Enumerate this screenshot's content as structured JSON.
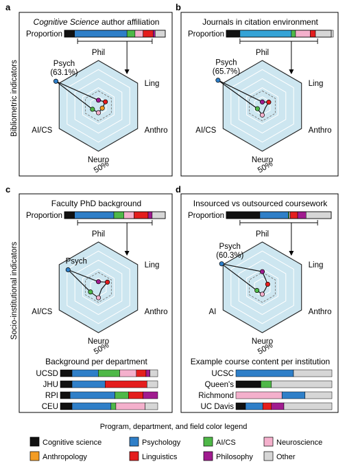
{
  "colors": {
    "Cognitive science": "#111111",
    "Psychology": "#2f7fc8",
    "Psychology_b": "#35a3d6",
    "AI/CS": "#4fb848",
    "Neuroscience": "#f4b0cc",
    "Anthropology": "#f39c24",
    "Linguistics": "#e41d1d",
    "Philosophy": "#a01b8f",
    "Other": "#d6d6d6",
    "radar_fill": "#cde6f0",
    "radar_edge": "#222222"
  },
  "side_labels": {
    "top": "Bibliometric indicators",
    "bottom": "Socio-institutional indicators"
  },
  "axis_pct_label": "50%",
  "proportion_label": "Proportion",
  "legend": {
    "title": "Program, department, and field color legend",
    "items": [
      {
        "label": "Cognitive science",
        "color": "#111111"
      },
      {
        "label": "Psychology",
        "color": "#2f7fc8"
      },
      {
        "label": "AI/CS",
        "color": "#4fb848"
      },
      {
        "label": "Neuroscience",
        "color": "#f4b0cc"
      },
      {
        "label": "Anthropology",
        "color": "#f39c24"
      },
      {
        "label": "Linguistics",
        "color": "#e41d1d"
      },
      {
        "label": "Philosophy",
        "color": "#a01b8f"
      },
      {
        "label": "Other",
        "color": "#d6d6d6"
      }
    ]
  },
  "chart_data": [
    {
      "id": "a",
      "panel_letter": "a",
      "type": "radar",
      "title_italic": "Cognitive Science",
      "title_rest": " author affiliation",
      "axes": [
        "Phil",
        "Ling",
        "Anthro",
        "Neuro",
        "AI/CS",
        "Psych"
      ],
      "values": [
        0.05,
        0.09,
        0.03,
        0.07,
        0.07,
        0.631
      ],
      "annotation": "Psych",
      "annotation_value": "(63.1%)",
      "proportion": [
        [
          "Cognitive science",
          0.1
        ],
        [
          "Psychology",
          0.52
        ],
        [
          "AI/CS",
          0.08
        ],
        [
          "Neuroscience",
          0.08
        ],
        [
          "Linguistics",
          0.1
        ],
        [
          "Philosophy",
          0.02
        ],
        [
          "Other",
          0.1
        ]
      ]
    },
    {
      "id": "b",
      "panel_letter": "b",
      "type": "radar",
      "title": "Journals in citation environment",
      "axes": [
        "Phil",
        "Ling",
        "Anthro",
        "Neuro",
        "AI/CS",
        "Psych"
      ],
      "values": [
        0.02,
        0.08,
        0.01,
        0.11,
        0.05,
        0.657
      ],
      "annotation": "Psych",
      "annotation_value": "(65.7%)",
      "proportion": [
        [
          "Cognitive science",
          0.13
        ],
        [
          "Psychology_b",
          0.49
        ],
        [
          "AI/CS",
          0.04
        ],
        [
          "Neuroscience",
          0.14
        ],
        [
          "Linguistics",
          0.05
        ],
        [
          "Other",
          0.17
        ]
      ]
    },
    {
      "id": "c",
      "panel_letter": "c",
      "type": "radar",
      "title": "Faculty PhD background",
      "axes": [
        "Phil",
        "Ling",
        "Anthro",
        "Neuro",
        "AI/CS",
        "Psych"
      ],
      "values": [
        0.05,
        0.13,
        0.01,
        0.13,
        0.11,
        0.45
      ],
      "annotation": "Psych",
      "proportion": [
        [
          "Cognitive science",
          0.1
        ],
        [
          "Psychology",
          0.39
        ],
        [
          "AI/CS",
          0.1
        ],
        [
          "Neuroscience",
          0.1
        ],
        [
          "Linguistics",
          0.14
        ],
        [
          "Philosophy",
          0.04
        ],
        [
          "Other",
          0.13
        ]
      ],
      "sub_title": "Background per department",
      "sub_rows": [
        {
          "label": "UCSD",
          "segments": [
            [
              "Cognitive science",
              0.12
            ],
            [
              "Psychology",
              0.27
            ],
            [
              "AI/CS",
              0.22
            ],
            [
              "Neuroscience",
              0.17
            ],
            [
              "Linguistics",
              0.1
            ],
            [
              "Philosophy",
              0.04
            ],
            [
              "Other",
              0.08
            ]
          ]
        },
        {
          "label": "JHU",
          "segments": [
            [
              "Cognitive science",
              0.12
            ],
            [
              "Psychology",
              0.34
            ],
            [
              "Linguistics",
              0.43
            ],
            [
              "Other",
              0.11
            ]
          ]
        },
        {
          "label": "RPI",
          "segments": [
            [
              "Cognitive science",
              0.1
            ],
            [
              "Psychology",
              0.46
            ],
            [
              "AI/CS",
              0.14
            ],
            [
              "Linguistics",
              0.15
            ],
            [
              "Philosophy",
              0.15
            ]
          ]
        },
        {
          "label": "CEU",
          "segments": [
            [
              "Cognitive science",
              0.12
            ],
            [
              "Psychology",
              0.4
            ],
            [
              "AI/CS",
              0.05
            ],
            [
              "Neuroscience",
              0.3
            ],
            [
              "Other",
              0.13
            ]
          ]
        }
      ]
    },
    {
      "id": "d",
      "panel_letter": "d",
      "type": "radar",
      "title": "Insourced vs outsourced coursework",
      "axes": [
        "Phil",
        "Ling",
        "Anthro",
        "Neuro",
        "AI",
        "Psych"
      ],
      "values": [
        0.22,
        0.06,
        0.01,
        0.07,
        0.06,
        0.603
      ],
      "annotation": "Psych",
      "annotation_value": "(60.3%)",
      "proportion": [
        [
          "Cognitive science",
          0.32
        ],
        [
          "Psychology",
          0.27
        ],
        [
          "AI/CS",
          0.01
        ],
        [
          "Neuroscience",
          0.01
        ],
        [
          "Linguistics",
          0.07
        ],
        [
          "Philosophy",
          0.08
        ],
        [
          "Other",
          0.24
        ]
      ],
      "sub_title": "Example course content per institution",
      "sub_rows": [
        {
          "label": "UCSC",
          "segments": [
            [
              "Psychology",
              0.6
            ],
            [
              "Other",
              0.4
            ]
          ]
        },
        {
          "label": "Queen's",
          "segments": [
            [
              "Cognitive science",
              0.26
            ],
            [
              "AI/CS",
              0.11
            ],
            [
              "Other",
              0.63
            ]
          ]
        },
        {
          "label": "Richmond",
          "segments": [
            [
              "Neuroscience",
              0.48
            ],
            [
              "Psychology",
              0.24
            ],
            [
              "Other",
              0.28
            ]
          ]
        },
        {
          "label": "UC Davis",
          "segments": [
            [
              "Cognitive science",
              0.1
            ],
            [
              "Psychology",
              0.18
            ],
            [
              "Linguistics",
              0.09
            ],
            [
              "Philosophy",
              0.13
            ],
            [
              "Other",
              0.5
            ]
          ]
        }
      ]
    }
  ]
}
